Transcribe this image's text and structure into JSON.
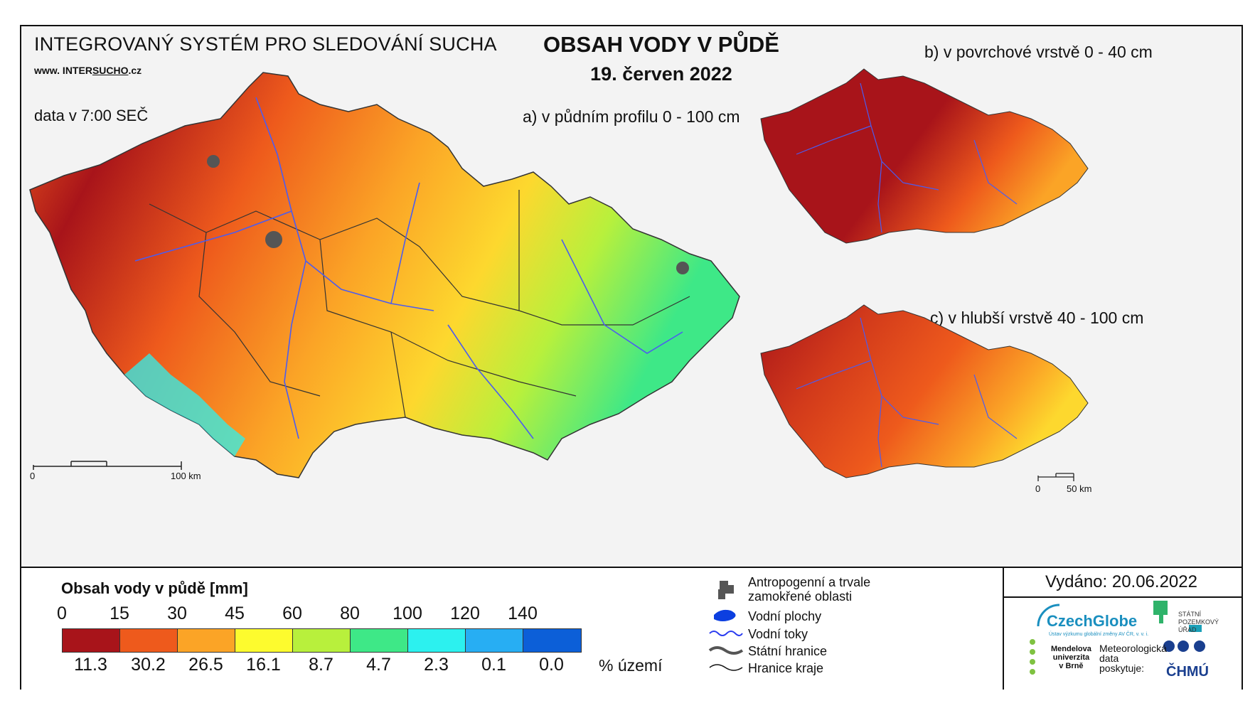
{
  "header": {
    "system_title": "INTEGROVANÝ SYSTÉM PRO SLEDOVÁNÍ SUCHA",
    "url_prefix": "www. INTER",
    "url_underlined": "SUCHO",
    "url_suffix": ".cz",
    "data_time": "data v 7:00 SEČ",
    "title": "OBSAH VODY V PŮDĚ",
    "date": "19. červen 2022"
  },
  "maps": {
    "a_label": "a) v půdním profilu 0 - 100 cm",
    "b_label": "b) v povrchové vrstvě 0 - 40 cm",
    "c_label": "c) v hlubší vrstvě 40 - 100 cm",
    "scale_main_start": "0",
    "scale_main_end": "100 km",
    "scale_small_start": "0",
    "scale_small_end": "50 km"
  },
  "legend": {
    "title": "Obsah vody v půdě  [mm]",
    "ticks": [
      "0",
      "15",
      "30",
      "45",
      "60",
      "80",
      "100",
      "120",
      "140"
    ],
    "colors": [
      "#a8141a",
      "#ee5a1c",
      "#fba426",
      "#fdfb2e",
      "#b8f03c",
      "#3ee887",
      "#2cf1ef",
      "#27aef3",
      "#0c5fd8"
    ],
    "percent": [
      "11.3",
      "30.2",
      "26.5",
      "16.1",
      "8.7",
      "4.7",
      "2.3",
      "0.1",
      "0.0"
    ],
    "percent_unit": "% území"
  },
  "symbols": {
    "anthro": "Antropogenní a trvale\nzamokřené oblasti",
    "water_bodies": "Vodní plochy",
    "rivers": "Vodní toky",
    "state_border": "Státní hranice",
    "region_border": "Hranice kraje"
  },
  "issued": "Vydáno: 20.06.2022",
  "logos": {
    "czechglobe": "CzechGlobe",
    "czechglobe_sub": "Ústav výzkumu globální změny AV ČR, v. v. i.",
    "spu": "STÁTNÍ\nPOZEMKOVÝ\nÚŘAD",
    "mendelu": "Mendelova\nuniverzita\nv Brně",
    "meteo": "Meteorologická\ndata\nposkytuje:",
    "chmu": "ČHMÚ"
  }
}
